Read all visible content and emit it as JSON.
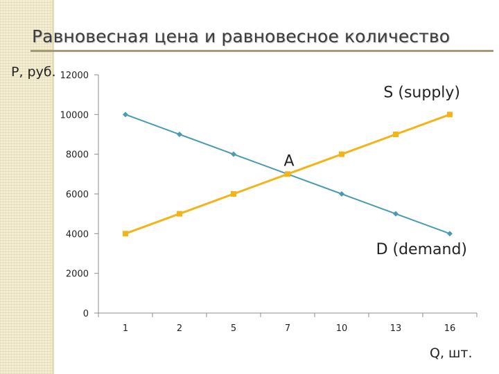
{
  "slide": {
    "title": "Равновесная цена и равновесное количество"
  },
  "colors": {
    "demand": "#4a9bb0",
    "supply": "#f2b417",
    "axis": "#8c8c8c",
    "title_rule": "#a49a78"
  },
  "chart_data": {
    "type": "line",
    "title": "Равновесная цена и равновесное количество",
    "xlabel": "Q, шт.",
    "ylabel": "P, руб.",
    "categories": [
      "1",
      "2",
      "5",
      "7",
      "10",
      "13",
      "16"
    ],
    "ylim": [
      0,
      12000
    ],
    "yticks": [
      0,
      2000,
      4000,
      6000,
      8000,
      10000,
      12000
    ],
    "grid": false,
    "legend": "none",
    "series": [
      {
        "key": "demand",
        "name": "D (demand)",
        "values": [
          10000,
          9000,
          8000,
          7000,
          6000,
          5000,
          4000
        ]
      },
      {
        "key": "supply",
        "name": "S (supply)",
        "values": [
          4000,
          5000,
          6000,
          7000,
          8000,
          9000,
          10000
        ]
      }
    ],
    "annotations": [
      {
        "text": "A",
        "category": "7",
        "value": 7000
      }
    ]
  }
}
